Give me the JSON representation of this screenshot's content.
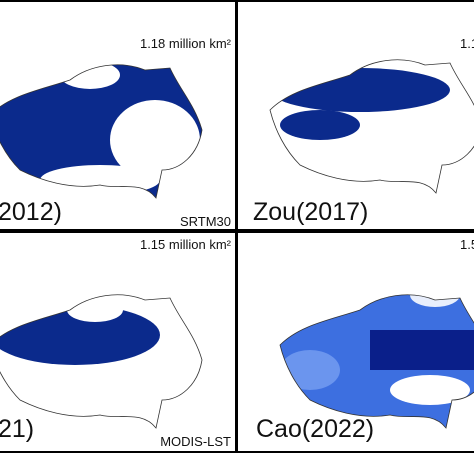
{
  "panels": [
    {
      "area": "1.18 million km²",
      "label": "2012)",
      "source": "SRTM30"
    },
    {
      "area": "1.1",
      "label": "Zou(2017)"
    },
    {
      "area": "1.15 million km²",
      "label": "21)",
      "source": "MODIS-LST"
    },
    {
      "area": "1.5",
      "label": "Cao(2022)"
    }
  ]
}
